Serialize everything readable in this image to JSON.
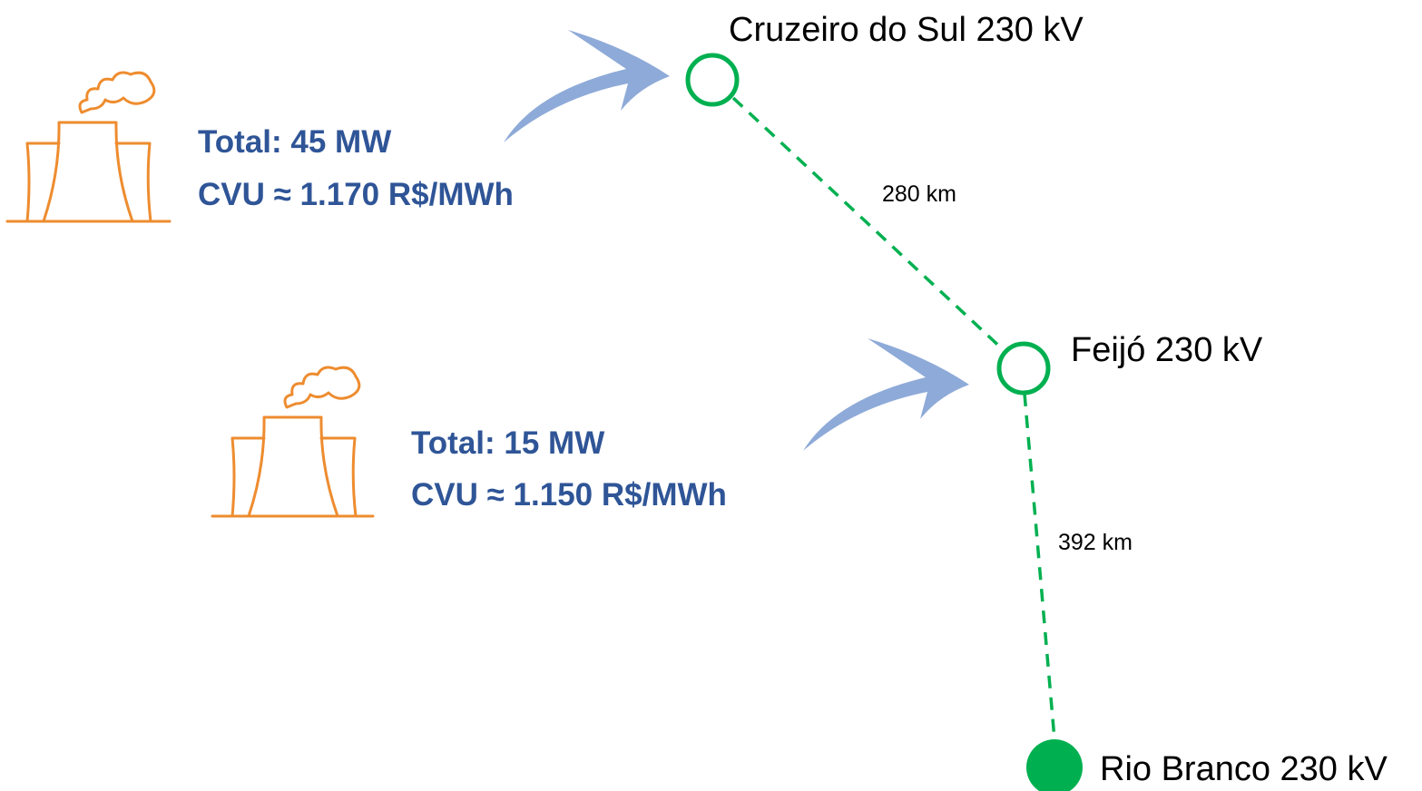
{
  "nodes": [
    {
      "label": "Cruzeiro do Sul 230 kV"
    },
    {
      "label": "Feijó 230 kV"
    },
    {
      "label": "Rio Branco 230 kV"
    }
  ],
  "edges": [
    {
      "label": "280 km"
    },
    {
      "label": "392 km"
    }
  ],
  "plants": [
    {
      "total": "Total: 45 MW",
      "cvu": "CVU ≈ 1.170 R$/MWh"
    },
    {
      "total": "Total: 15 MW",
      "cvu": "CVU ≈ 1.150 R$/MWh"
    }
  ]
}
